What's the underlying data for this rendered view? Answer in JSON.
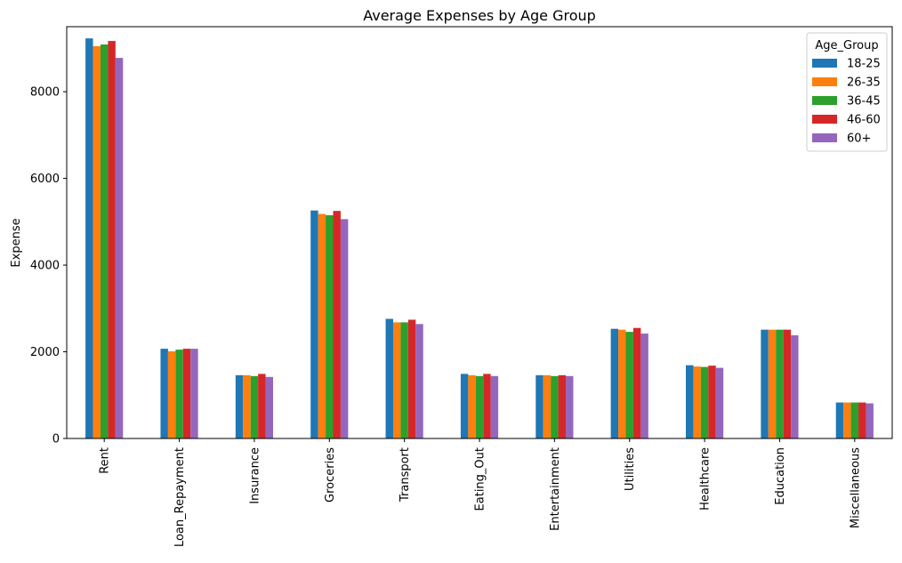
{
  "chart_data": {
    "type": "bar",
    "title": "Average Expenses by Age Group",
    "xlabel": "",
    "ylabel": "Expense",
    "ylim": [
      0,
      9500
    ],
    "yticks": [
      0,
      2000,
      4000,
      6000,
      8000
    ],
    "grid": false,
    "legend": {
      "title": "Age_Group",
      "placement": "top-right"
    },
    "categories": [
      "Rent",
      "Loan_Repayment",
      "Insurance",
      "Groceries",
      "Transport",
      "Eating_Out",
      "Entertainment",
      "Utilities",
      "Healthcare",
      "Education",
      "Miscellaneous"
    ],
    "series": [
      {
        "name": "18-25",
        "color": "#1f77b4",
        "values": [
          9230,
          2070,
          1460,
          5260,
          2760,
          1490,
          1460,
          2530,
          1690,
          2510,
          830
        ]
      },
      {
        "name": "26-35",
        "color": "#ff7f0e",
        "values": [
          9050,
          2010,
          1460,
          5180,
          2680,
          1460,
          1460,
          2510,
          1660,
          2510,
          830
        ]
      },
      {
        "name": "36-45",
        "color": "#2ca02c",
        "values": [
          9090,
          2050,
          1440,
          5150,
          2680,
          1440,
          1440,
          2460,
          1650,
          2510,
          830
        ]
      },
      {
        "name": "46-60",
        "color": "#d62728",
        "values": [
          9170,
          2070,
          1490,
          5250,
          2740,
          1490,
          1460,
          2550,
          1680,
          2510,
          830
        ]
      },
      {
        "name": "60+",
        "color": "#9467bd",
        "values": [
          8780,
          2070,
          1420,
          5060,
          2640,
          1440,
          1440,
          2420,
          1630,
          2380,
          810
        ]
      }
    ]
  }
}
